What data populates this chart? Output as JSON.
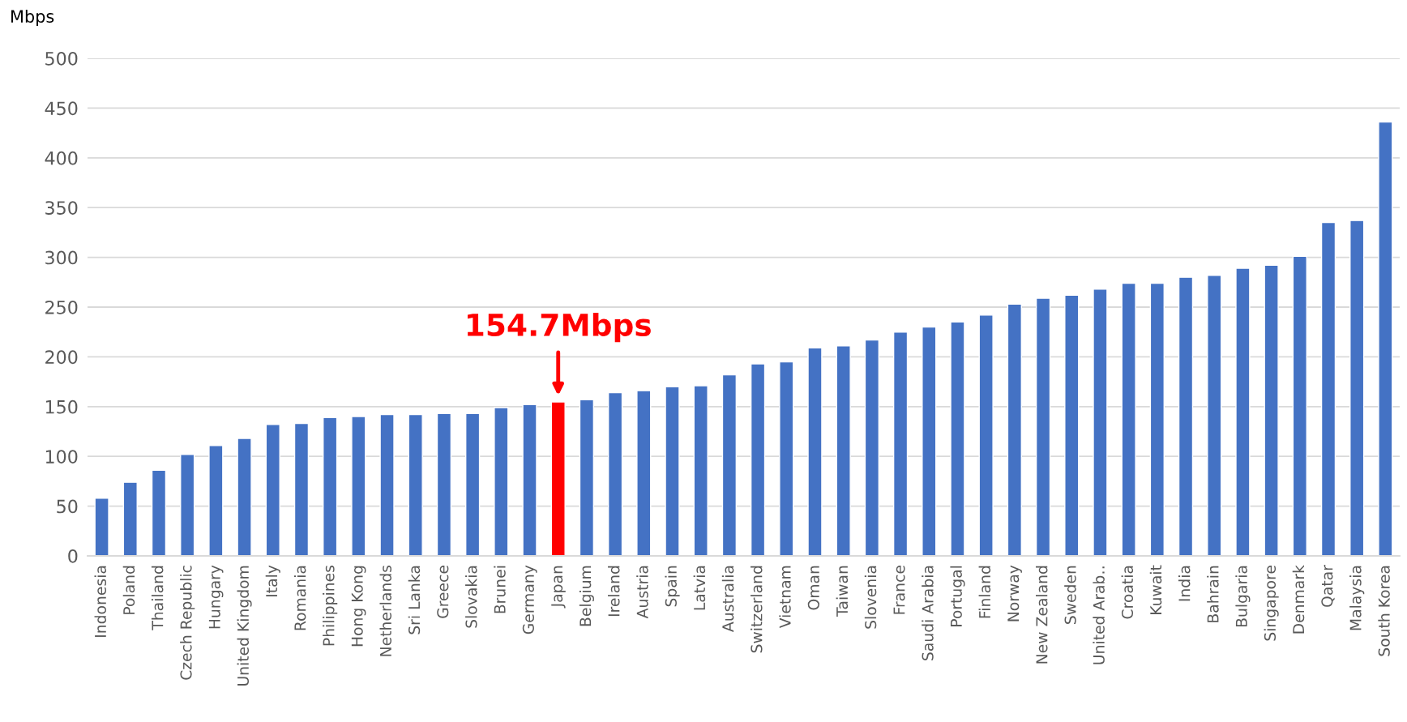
{
  "chart_data": {
    "type": "bar",
    "ylabel": "Mbps",
    "categories": [
      "Indonesia",
      "Poland",
      "Thailand",
      "Czech Republic",
      "Hungary",
      "United Kingdom",
      "Italy",
      "Romania",
      "Philippines",
      "Hong Kong",
      "Netherlands",
      "Sri Lanka",
      "Greece",
      "Slovakia",
      "Brunei",
      "Germany",
      "Japan",
      "Belgium",
      "Ireland",
      "Austria",
      "Spain",
      "Latvia",
      "Australia",
      "Switzerland",
      "Vietnam",
      "Oman",
      "Taiwan",
      "Slovenia",
      "France",
      "Saudi Arabia",
      "Portugal",
      "Finland",
      "Norway",
      "New Zealand",
      "Sweden",
      "United Arab‥",
      "Croatia",
      "Kuwait",
      "India",
      "Bahrain",
      "Bulgaria",
      "Singapore",
      "Denmark",
      "Qatar",
      "Malaysia",
      "South Korea"
    ],
    "values": [
      58,
      74,
      86,
      102,
      111,
      118,
      132,
      133,
      139,
      140,
      142,
      142,
      143,
      143,
      149,
      152,
      154.7,
      157,
      164,
      166,
      170,
      171,
      182,
      193,
      195,
      209,
      211,
      217,
      225,
      230,
      235,
      242,
      253,
      259,
      262,
      268,
      274,
      274,
      280,
      282,
      289,
      292,
      301,
      335,
      337,
      436
    ],
    "colors": [
      "#4472c4",
      "#4472c4",
      "#4472c4",
      "#4472c4",
      "#4472c4",
      "#4472c4",
      "#4472c4",
      "#4472c4",
      "#4472c4",
      "#4472c4",
      "#4472c4",
      "#4472c4",
      "#4472c4",
      "#4472c4",
      "#4472c4",
      "#4472c4",
      "#ff0000",
      "#4472c4",
      "#4472c4",
      "#4472c4",
      "#4472c4",
      "#4472c4",
      "#4472c4",
      "#4472c4",
      "#4472c4",
      "#4472c4",
      "#4472c4",
      "#4472c4",
      "#4472c4",
      "#4472c4",
      "#4472c4",
      "#4472c4",
      "#4472c4",
      "#4472c4",
      "#4472c4",
      "#4472c4",
      "#4472c4",
      "#4472c4",
      "#4472c4",
      "#4472c4",
      "#4472c4",
      "#4472c4",
      "#4472c4",
      "#4472c4",
      "#4472c4",
      "#4472c4"
    ],
    "ylim": [
      0,
      500
    ],
    "yticks": [
      0,
      50,
      100,
      150,
      200,
      250,
      300,
      350,
      400,
      450,
      500
    ],
    "grid": "y",
    "annotations": [
      {
        "text": "154.7Mbps",
        "x": "Japan",
        "y": 154.7
      }
    ]
  }
}
